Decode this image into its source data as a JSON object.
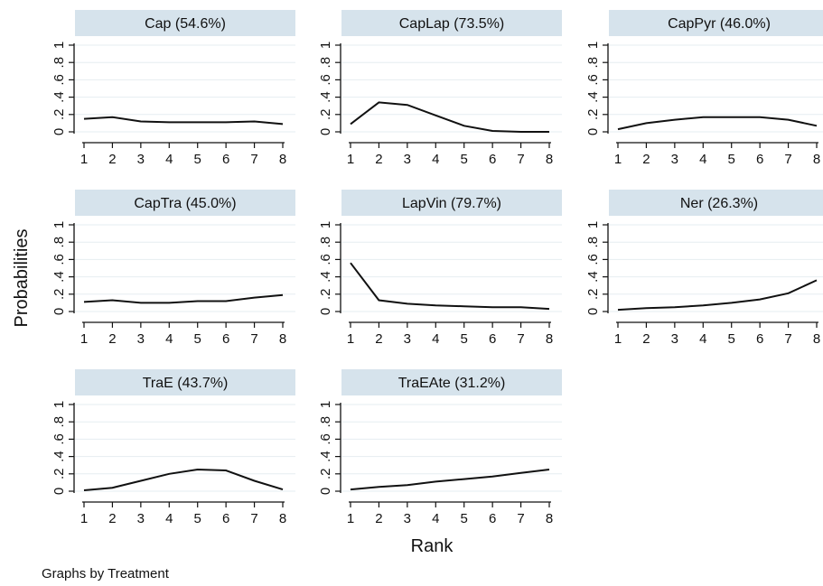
{
  "chart_data": {
    "type": "line",
    "ylabel": "Probabilities",
    "xlabel": "Rank",
    "note": "Graphs by Treatment",
    "x": [
      1,
      2,
      3,
      4,
      5,
      6,
      7,
      8
    ],
    "x_ticks": [
      "1",
      "2",
      "3",
      "4",
      "5",
      "6",
      "7",
      "8"
    ],
    "y_ticks": [
      "0",
      ".2",
      ".4",
      ".6",
      ".8",
      "1"
    ],
    "ylim": [
      0,
      1
    ],
    "xlim": [
      1,
      8
    ],
    "grid": true,
    "layout": "3 columns x 3 rows of panels",
    "panels": [
      {
        "title": "Cap (54.6%)",
        "values": [
          0.15,
          0.17,
          0.12,
          0.11,
          0.11,
          0.11,
          0.12,
          0.09
        ]
      },
      {
        "title": "CapLap (73.5%)",
        "values": [
          0.09,
          0.34,
          0.31,
          0.19,
          0.07,
          0.01,
          0.0,
          0.0
        ]
      },
      {
        "title": "CapPyr (46.0%)",
        "values": [
          0.03,
          0.1,
          0.14,
          0.17,
          0.17,
          0.17,
          0.14,
          0.07
        ]
      },
      {
        "title": "CapTra (45.0%)",
        "values": [
          0.11,
          0.13,
          0.1,
          0.1,
          0.12,
          0.12,
          0.16,
          0.19
        ]
      },
      {
        "title": "LapVin (79.7%)",
        "values": [
          0.56,
          0.13,
          0.09,
          0.07,
          0.06,
          0.05,
          0.05,
          0.03
        ]
      },
      {
        "title": "Ner (26.3%)",
        "values": [
          0.02,
          0.04,
          0.05,
          0.07,
          0.1,
          0.14,
          0.21,
          0.36
        ]
      },
      {
        "title": "TraE (43.7%)",
        "values": [
          0.01,
          0.04,
          0.12,
          0.2,
          0.25,
          0.24,
          0.12,
          0.02
        ]
      },
      {
        "title": "TraEAte (31.2%)",
        "values": [
          0.02,
          0.05,
          0.07,
          0.11,
          0.14,
          0.17,
          0.21,
          0.25
        ]
      }
    ]
  }
}
